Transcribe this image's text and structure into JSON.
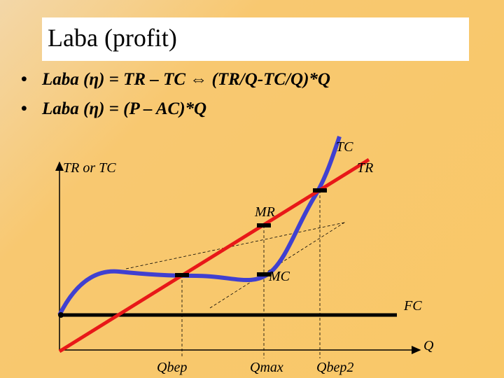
{
  "slide": {
    "title": "Laba (profit)",
    "bullets": [
      "Laba (η) = TR – TC ⇔ (TR/Q-TC/Q)*Q",
      "Laba (η) = (P – AC)*Q"
    ],
    "diagram": {
      "y_axis_label": "TR or TC",
      "x_axis_label": "Q",
      "curve_labels": {
        "tc": "TC",
        "tr": "TR",
        "fc": "FC",
        "mr": "MR",
        "mc": "MC"
      },
      "quantity_labels": [
        "Qbep",
        "Qmax",
        "Qbep2"
      ]
    }
  }
}
